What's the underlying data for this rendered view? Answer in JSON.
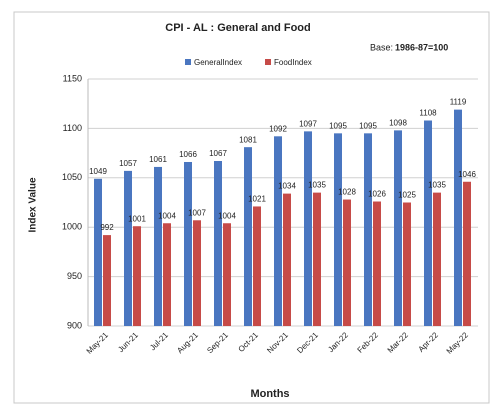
{
  "chart_data": {
    "type": "bar",
    "title": "CPI - AL : General and Food",
    "base_label": "Base:",
    "base_value": "1986-87=100",
    "x_label": "Months",
    "y_label": "Index Value",
    "categories": [
      "May-21",
      "Jun-21",
      "Jul-21",
      "Aug-21",
      "Sep-21",
      "Oct-21",
      "Nov-21",
      "Dec-21",
      "Jan-22",
      "Feb-22",
      "Mar-22",
      "Apr-22",
      "May-22"
    ],
    "series": [
      {
        "name": "GeneralIndex",
        "color": "#4a76c0",
        "values": [
          1049,
          1057,
          1061,
          1066,
          1067,
          1081,
          1092,
          1097,
          1095,
          1095,
          1098,
          1108,
          1119
        ]
      },
      {
        "name": "FoodIndex",
        "color": "#c64b48",
        "values": [
          992,
          1001,
          1004,
          1007,
          1004,
          1021,
          1034,
          1035,
          1028,
          1026,
          1025,
          1035,
          1046
        ]
      }
    ],
    "ylim": [
      900,
      1150
    ],
    "yticks": [
      900,
      950,
      1000,
      1050,
      1100,
      1150
    ],
    "grid": true,
    "legend": "top"
  }
}
